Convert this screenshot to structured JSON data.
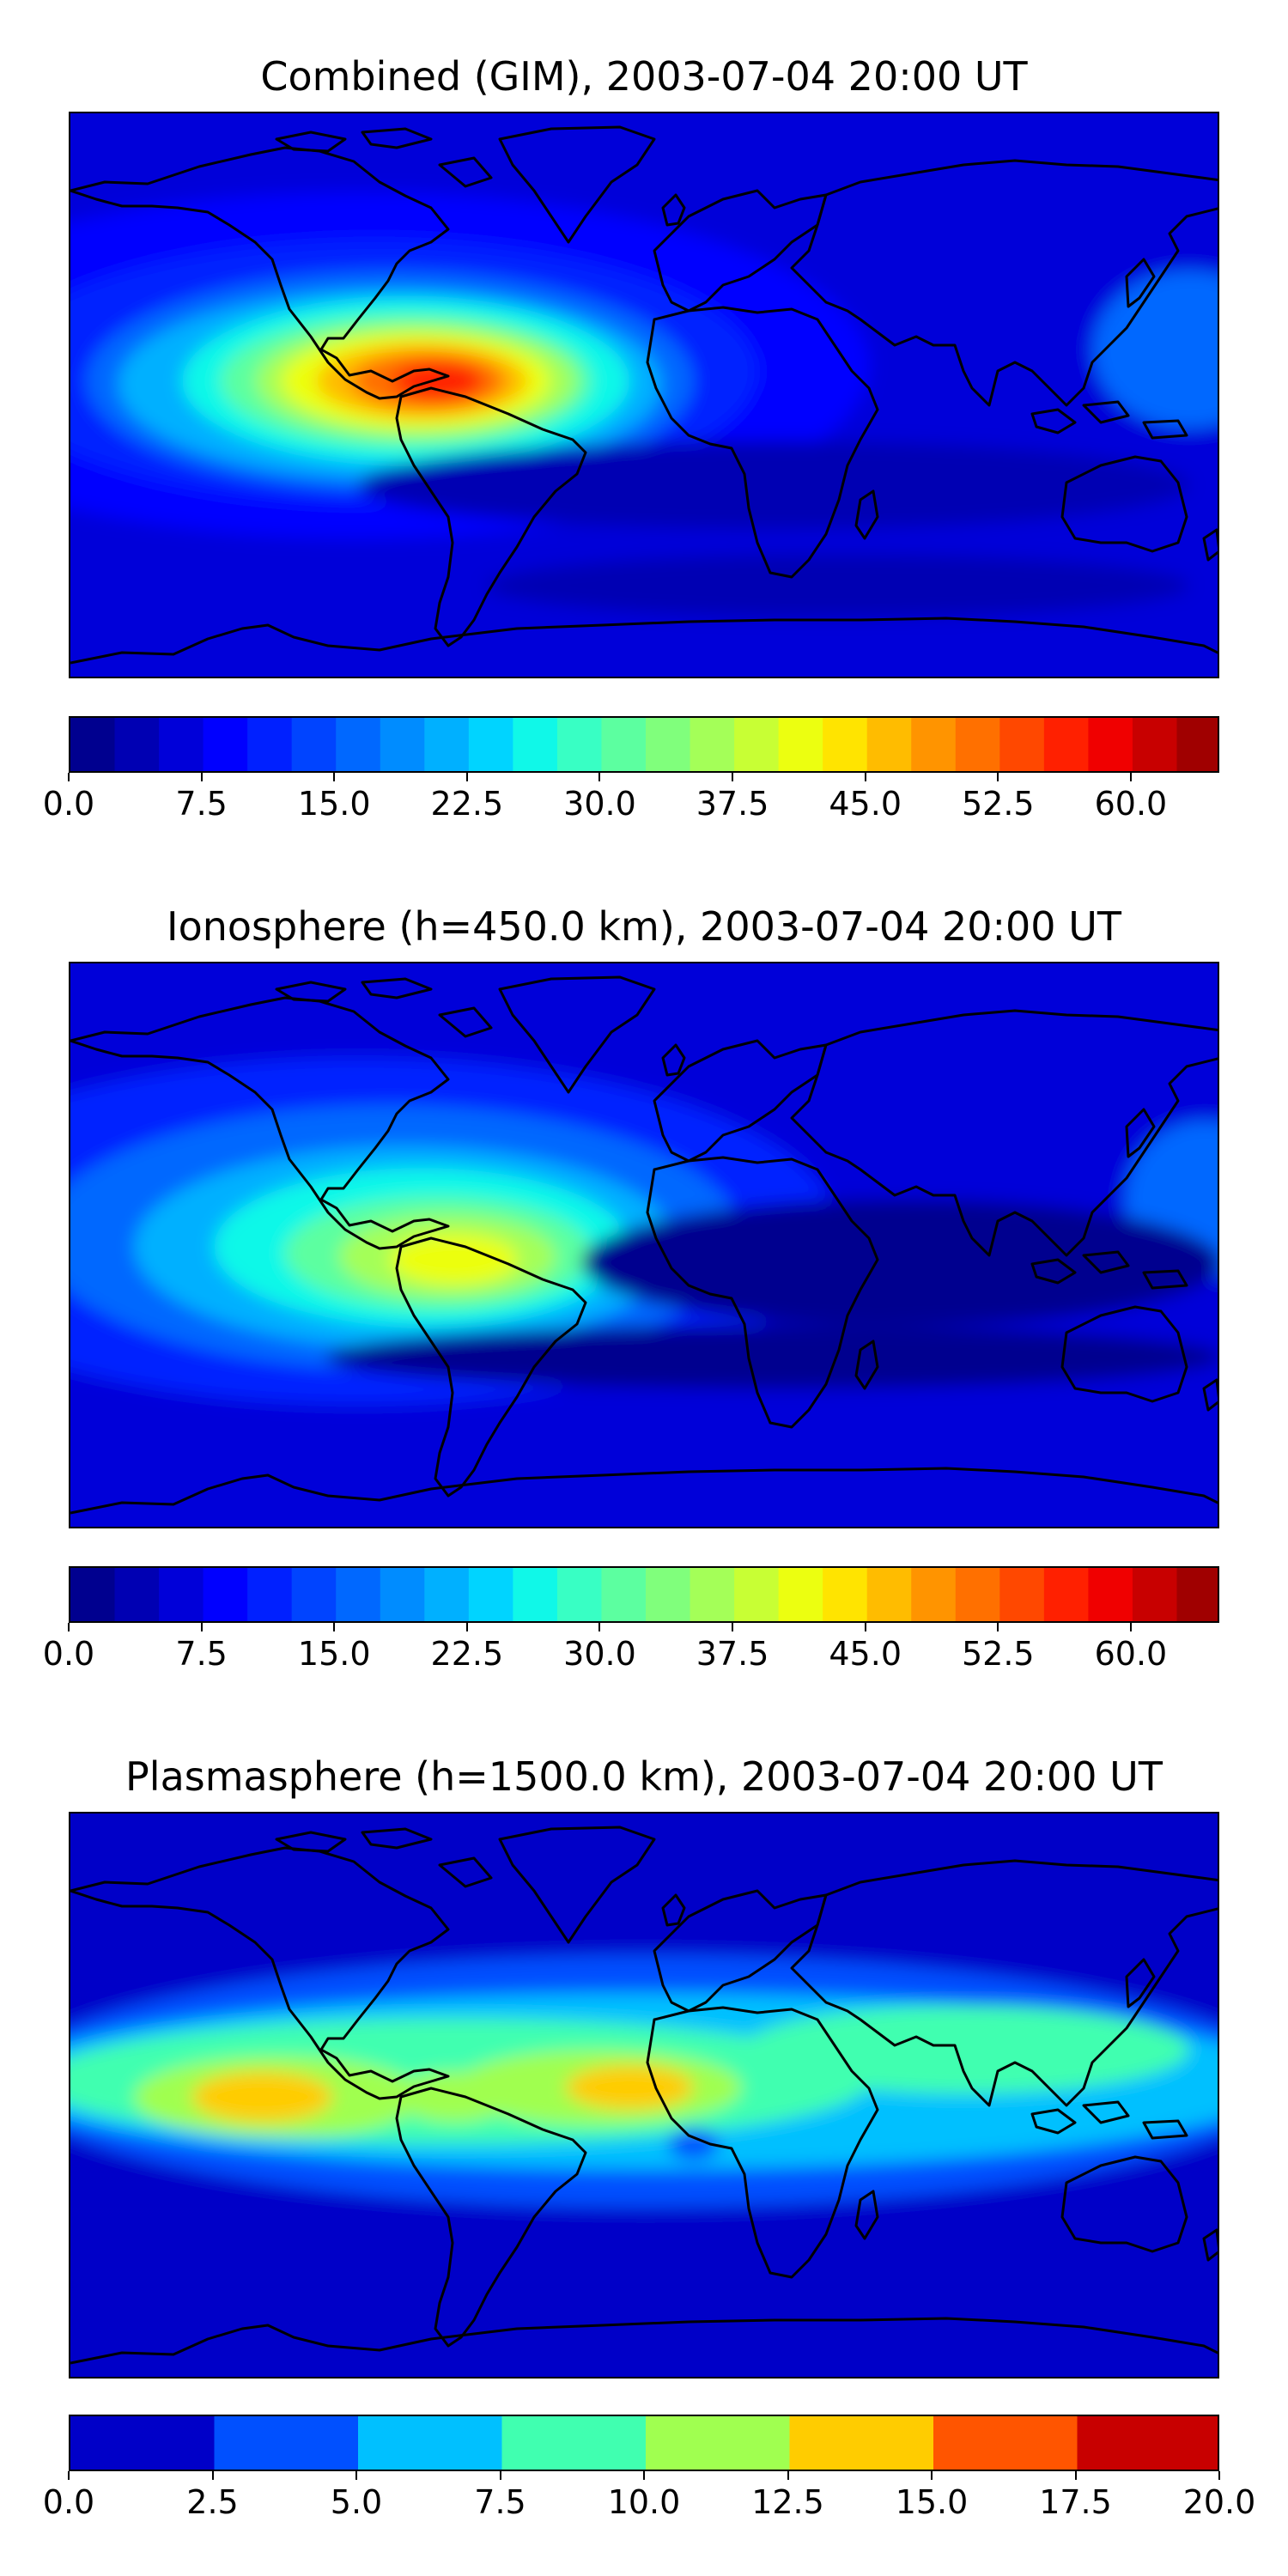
{
  "chart_data": [
    {
      "type": "heatmap",
      "title": "Combined (GIM), 2003-07-04 20:00 UT",
      "projection": "PlateCarree",
      "colormap": "jet",
      "levels": [
        0.0,
        2.5,
        5.0,
        7.5,
        10.0,
        12.5,
        15.0,
        17.5,
        20.0,
        22.5,
        25.0,
        27.5,
        30.0,
        32.5,
        35.0,
        37.5,
        40.0,
        42.5,
        45.0,
        47.5,
        50.0,
        52.5,
        55.0,
        57.5,
        60.0,
        62.5,
        65.0
      ],
      "colors": [
        "#00008f",
        "#0000b3",
        "#0000d9",
        "#0000ff",
        "#0020ff",
        "#0044ff",
        "#0068ff",
        "#008cff",
        "#00b0ff",
        "#00d4ff",
        "#10f8e8",
        "#38ffc4",
        "#5cffa0",
        "#80ff7c",
        "#a4ff58",
        "#c8ff34",
        "#ecff10",
        "#ffe400",
        "#ffbc00",
        "#ff9400",
        "#ff7000",
        "#ff4800",
        "#ff2000",
        "#f00000",
        "#c80000",
        "#a00000"
      ],
      "colorbar_ticks": [
        "0.0",
        "7.5",
        "15.0",
        "22.5",
        "30.0",
        "37.5",
        "45.0",
        "52.5",
        "60.0"
      ],
      "features": [
        {
          "name": "equatorial anomaly peak over South America",
          "lon": -70,
          "lat": 5,
          "value": 57
        },
        {
          "name": "background night-side",
          "value": 5
        }
      ]
    },
    {
      "type": "heatmap",
      "title": "Ionosphere  (h=450.0 km), 2003-07-04 20:00 UT",
      "projection": "PlateCarree",
      "colormap": "jet",
      "levels": [
        0.0,
        2.5,
        5.0,
        7.5,
        10.0,
        12.5,
        15.0,
        17.5,
        20.0,
        22.5,
        25.0,
        27.5,
        30.0,
        32.5,
        35.0,
        37.5,
        40.0,
        42.5,
        45.0,
        47.5,
        50.0,
        52.5,
        55.0,
        57.5,
        60.0,
        62.5,
        65.0
      ],
      "colors": [
        "#00008f",
        "#0000b3",
        "#0000d9",
        "#0000ff",
        "#0020ff",
        "#0044ff",
        "#0068ff",
        "#008cff",
        "#00b0ff",
        "#00d4ff",
        "#10f8e8",
        "#38ffc4",
        "#5cffa0",
        "#80ff7c",
        "#a4ff58",
        "#c8ff34",
        "#ecff10",
        "#ffe400",
        "#ffbc00",
        "#ff9400",
        "#ff7000",
        "#ff4800",
        "#ff2000",
        "#f00000",
        "#c80000",
        "#a00000"
      ],
      "colorbar_ticks": [
        "0.0",
        "7.5",
        "15.0",
        "22.5",
        "30.0",
        "37.5",
        "45.0",
        "52.5",
        "60.0"
      ],
      "features": [
        {
          "name": "peak over South America",
          "lon": -60,
          "lat": -5,
          "value": 40
        },
        {
          "name": "background night-side",
          "value": 3
        }
      ]
    },
    {
      "type": "heatmap",
      "title": "Plasmasphere (h=1500.0 km), 2003-07-04 20:00 UT",
      "projection": "PlateCarree",
      "colormap": "jet",
      "levels": [
        0.0,
        2.5,
        5.0,
        7.5,
        10.0,
        12.5,
        15.0,
        17.5,
        20.0
      ],
      "colors": [
        "#0000c8",
        "#0050ff",
        "#00c0ff",
        "#40ffb0",
        "#a0ff50",
        "#ffcc00",
        "#ff5500",
        "#c80000"
      ],
      "colorbar_ticks": [
        "0.0",
        "2.5",
        "5.0",
        "7.5",
        "10.0",
        "12.5",
        "15.0",
        "17.5",
        "20.0"
      ],
      "features": [
        {
          "name": "maximum over eastern Pacific",
          "lon": -120,
          "lat": 0,
          "value": 13
        },
        {
          "name": "maximum over western Africa",
          "lon": -5,
          "lat": 2,
          "value": 13
        },
        {
          "name": "background high latitudes",
          "value": 1.5
        }
      ]
    }
  ]
}
